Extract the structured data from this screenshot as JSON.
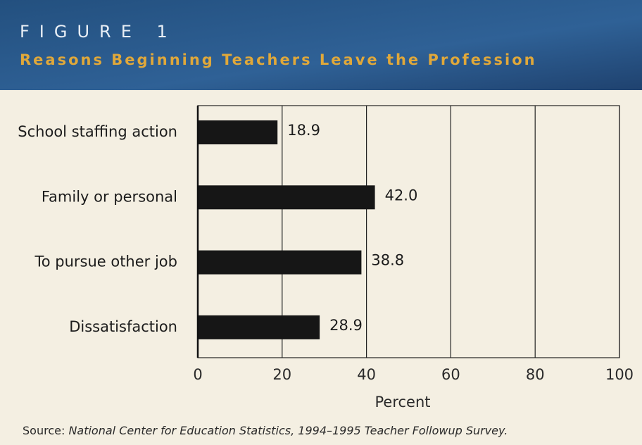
{
  "chart_data": {
    "type": "bar",
    "orientation": "horizontal",
    "figure_label": "FIGURE 1",
    "title": "Reasons Beginning Teachers Leave the Profession",
    "categories": [
      "School staffing action",
      "Family or personal",
      "To pursue other job",
      "Dissatisfaction"
    ],
    "values": [
      18.9,
      42.0,
      38.8,
      28.9
    ],
    "value_labels": [
      "18.9",
      "42.0",
      "38.8",
      "28.9"
    ],
    "color": "#161616",
    "xlim": [
      0,
      100
    ],
    "xticks": [
      0,
      20,
      40,
      60,
      80,
      100
    ],
    "xlabel": "Percent",
    "grid": true,
    "source_label": "Source:",
    "source": "National Center for Education Statistics, 1994–1995 Teacher Followup Survey."
  }
}
